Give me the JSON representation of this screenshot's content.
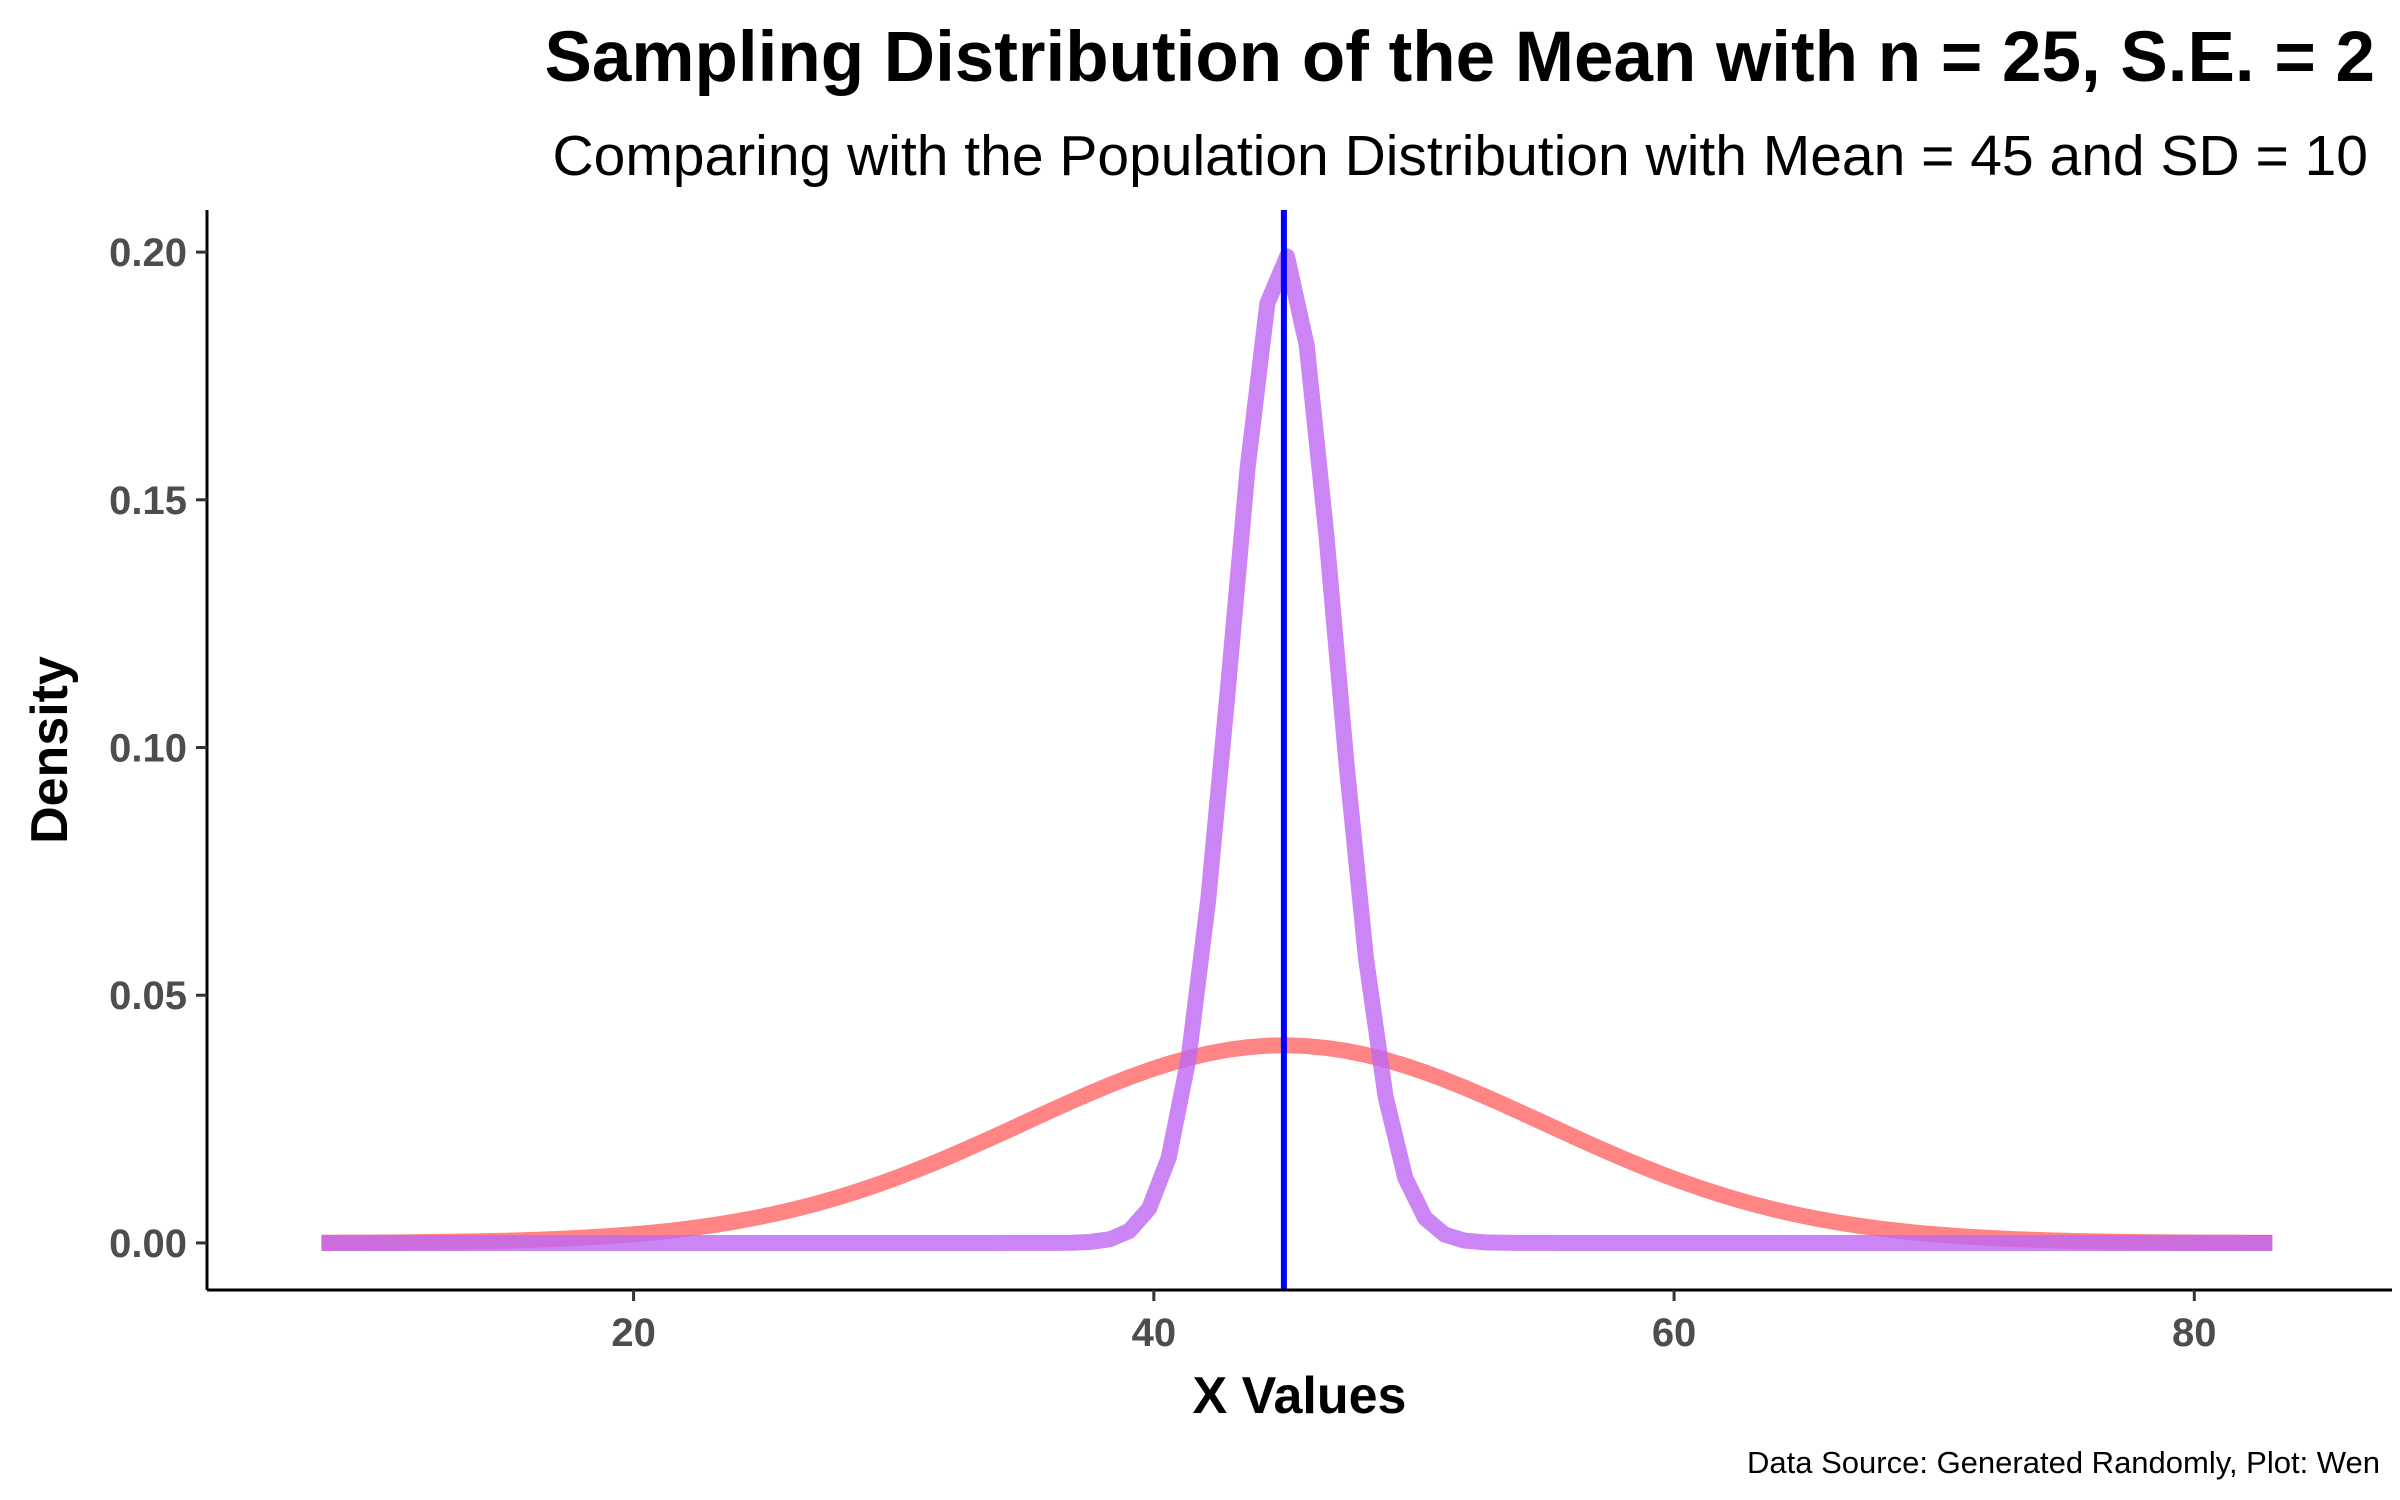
{
  "chart_data": {
    "type": "line",
    "title": "Sampling Distribution of the Mean with n = 25, S.E. = 2",
    "subtitle": "Comparing with the Population Distribution with Mean = 45 and SD = 10",
    "xlabel": "X Values",
    "ylabel": "Density",
    "caption": "Data Source: Generated Randomly, Plot: Wen",
    "xlim": [
      3.6,
      87.6
    ],
    "ylim": [
      -0.0095,
      0.2085
    ],
    "x_ticks": [
      20,
      40,
      60,
      80
    ],
    "x_tick_labels": [
      "20",
      "40",
      "60",
      "80"
    ],
    "y_ticks": [
      0.0,
      0.05,
      0.1,
      0.15,
      0.2
    ],
    "y_tick_labels": [
      "0.00",
      "0.05",
      "0.10",
      "0.15",
      "0.20"
    ],
    "grid": false,
    "x_range": [
      8,
      83
    ],
    "series": [
      {
        "distribution": "normal",
        "mean": 45,
        "sd": 10,
        "color": "#ff6666",
        "opacity": 0.8
      },
      {
        "distribution": "normal",
        "mean": 45,
        "sd": 2,
        "color": "#bf66f2",
        "opacity": 0.8
      }
    ],
    "reference_line": {
      "orientation": "vertical",
      "x": 45,
      "color": "#0000ff"
    },
    "legend": "none"
  }
}
